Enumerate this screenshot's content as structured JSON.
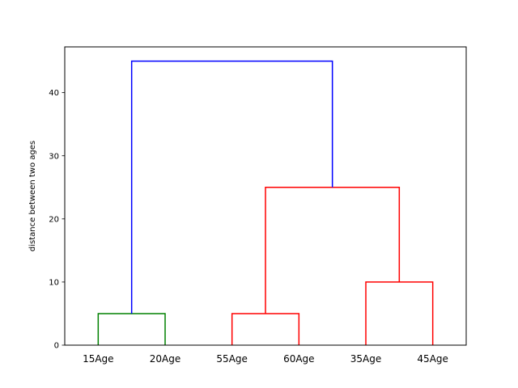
{
  "chart_data": {
    "type": "dendrogram",
    "ylabel": "distance between two ages",
    "ylim": [
      0,
      47.25
    ],
    "yticks": [
      0,
      10,
      20,
      30,
      40
    ],
    "grid": false,
    "leaves": [
      "15Age",
      "20Age",
      "55Age",
      "60Age",
      "35Age",
      "45Age"
    ],
    "merges": [
      {
        "left": 0,
        "right": 1,
        "height": 5,
        "color": "#008000"
      },
      {
        "left": 2,
        "right": 3,
        "height": 5,
        "color": "#ff0000"
      },
      {
        "left": 4,
        "right": 5,
        "height": 10,
        "color": "#ff0000"
      },
      {
        "left": 7,
        "right": 8,
        "height": 25,
        "color": "#ff0000"
      },
      {
        "left": 6,
        "right": 9,
        "height": 45,
        "color": "#0000ff"
      }
    ]
  }
}
